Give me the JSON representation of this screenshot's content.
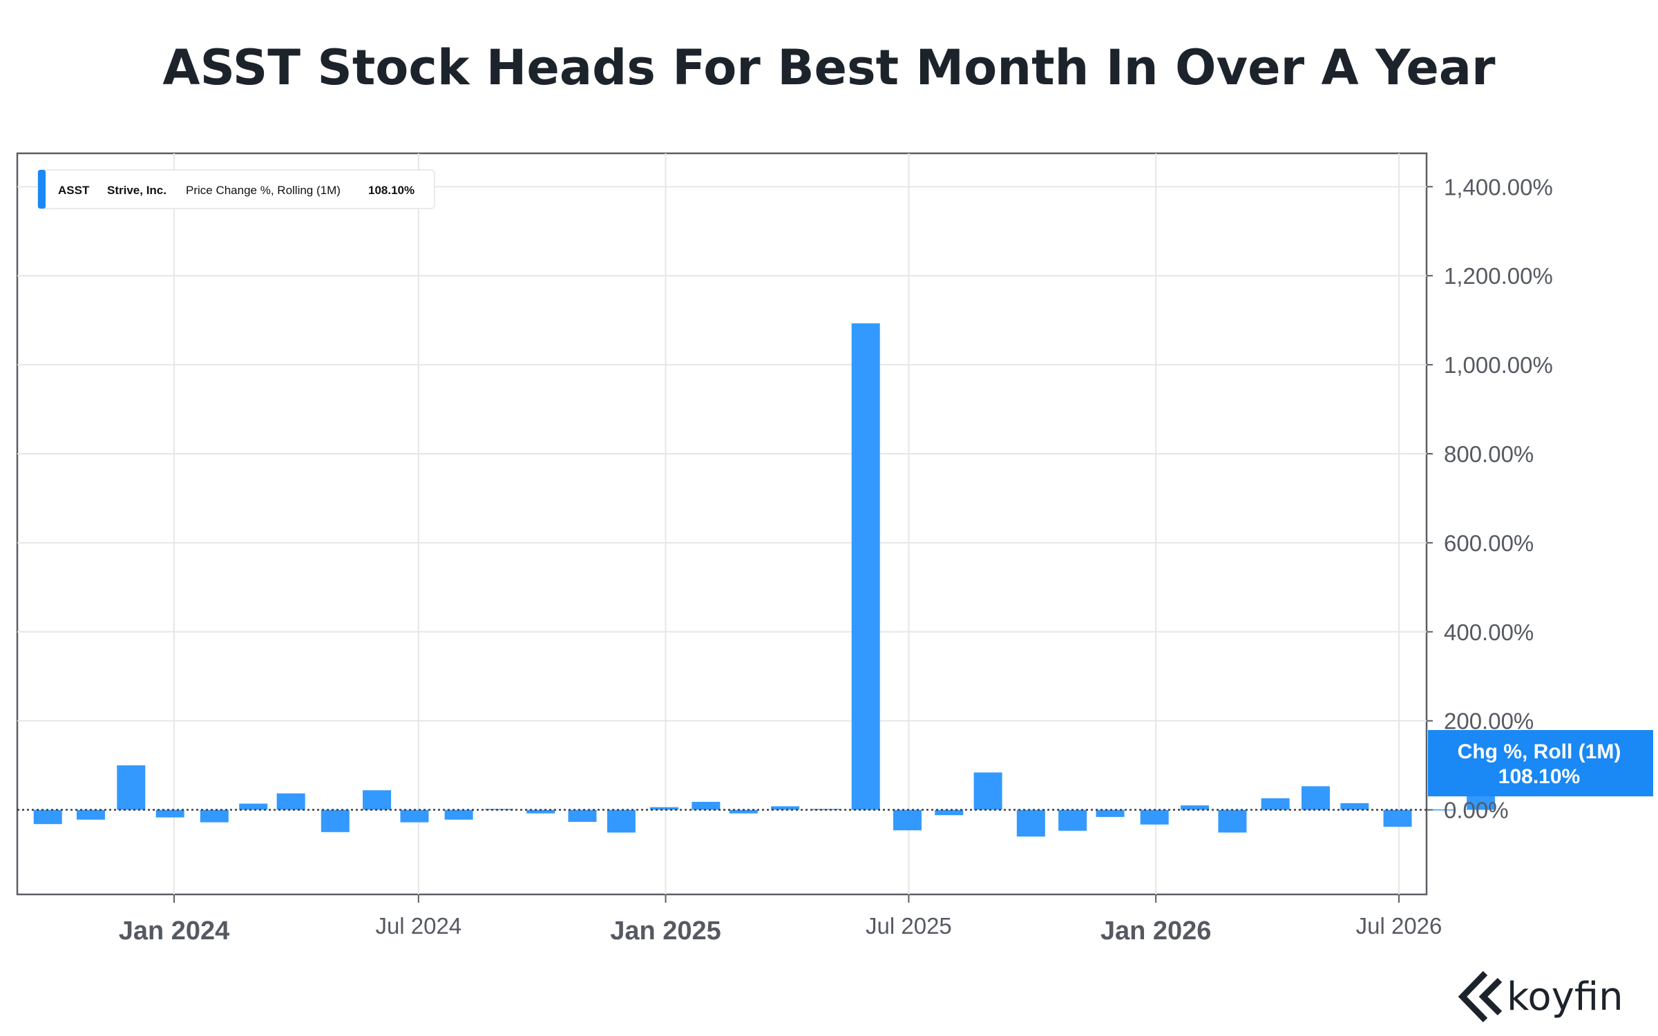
{
  "title": "ASST Stock Heads For Best Month In Over A Year",
  "legend": {
    "ticker": "ASST",
    "company": "Strive, Inc.",
    "metric": "Price Change %, Rolling (1M)",
    "value": "108.10%"
  },
  "callout": {
    "line1": "Chg %, Roll (1M)",
    "line2": "108.10%"
  },
  "brand": "koyfin",
  "colors": {
    "bar": "#3399ff",
    "accent": "#1a88f5",
    "grid": "#e6e6e6",
    "axis": "#5a5e63",
    "title": "#1d232b"
  },
  "chart_data": {
    "type": "bar",
    "y_axis": {
      "position": "right",
      "ylim": [
        -190,
        1475
      ],
      "ticks": [
        0,
        200,
        400,
        600,
        800,
        1000,
        1200,
        1400
      ],
      "tick_labels": [
        "0.00%",
        "200.00%",
        "400.00%",
        "600.00%",
        "800.00%",
        "1,000.00%",
        "1,200.00%",
        "1,400.00%"
      ]
    },
    "x_axis": {
      "ticks": [
        {
          "date": "2024-01-01",
          "label": "Jan 2024",
          "major": true
        },
        {
          "date": "2024-07-01",
          "label": "Jul 2024",
          "major": false
        },
        {
          "date": "2025-01-01",
          "label": "Jan 2025",
          "major": true
        },
        {
          "date": "2025-07-01",
          "label": "Jul 2025",
          "major": false
        },
        {
          "date": "2026-01-01",
          "label": "Jan 2026",
          "major": true
        },
        {
          "date": "2026-07-01",
          "label": "Jul 2026",
          "major": false
        }
      ]
    },
    "grid": true,
    "legend_placement": "top-left",
    "zero_line": "dotted",
    "series": [
      {
        "name": "ASST",
        "points": [
          {
            "date": "2023-09-29",
            "value": -32
          },
          {
            "date": "2023-10-31",
            "value": -22
          },
          {
            "date": "2023-11-30",
            "value": 100
          },
          {
            "date": "2023-12-29",
            "value": -17
          },
          {
            "date": "2024-01-31",
            "value": -28
          },
          {
            "date": "2024-02-29",
            "value": 14
          },
          {
            "date": "2024-03-28",
            "value": 37
          },
          {
            "date": "2024-04-30",
            "value": -50
          },
          {
            "date": "2024-05-31",
            "value": 44
          },
          {
            "date": "2024-06-28",
            "value": -28
          },
          {
            "date": "2024-07-31",
            "value": -22
          },
          {
            "date": "2024-08-30",
            "value": 2
          },
          {
            "date": "2024-09-30",
            "value": -8
          },
          {
            "date": "2024-10-31",
            "value": -27
          },
          {
            "date": "2024-11-29",
            "value": -51
          },
          {
            "date": "2024-12-31",
            "value": 6
          },
          {
            "date": "2025-01-31",
            "value": 18
          },
          {
            "date": "2025-02-28",
            "value": -8
          },
          {
            "date": "2025-03-31",
            "value": 8
          },
          {
            "date": "2025-04-30",
            "value": 2
          },
          {
            "date": "2025-05-30",
            "value": 1093
          },
          {
            "date": "2025-06-30",
            "value": -46
          },
          {
            "date": "2025-07-31",
            "value": -12
          },
          {
            "date": "2025-08-29",
            "value": 84
          },
          {
            "date": "2025-09-30",
            "value": -60
          },
          {
            "date": "2025-10-31",
            "value": -47
          },
          {
            "date": "2025-11-28",
            "value": -16
          },
          {
            "date": "2025-12-31",
            "value": -33
          },
          {
            "date": "2026-01-30",
            "value": 10
          },
          {
            "date": "2026-02-27",
            "value": -51
          },
          {
            "date": "2026-03-31",
            "value": 26
          },
          {
            "date": "2026-04-30",
            "value": 53
          },
          {
            "date": "2026-05-29",
            "value": 15
          },
          {
            "date": "2026-06-30",
            "value": -38
          },
          {
            "date": "2026-07-31",
            "value": 1
          },
          {
            "date": "2026-08-31",
            "value": 108.1
          }
        ]
      }
    ]
  }
}
